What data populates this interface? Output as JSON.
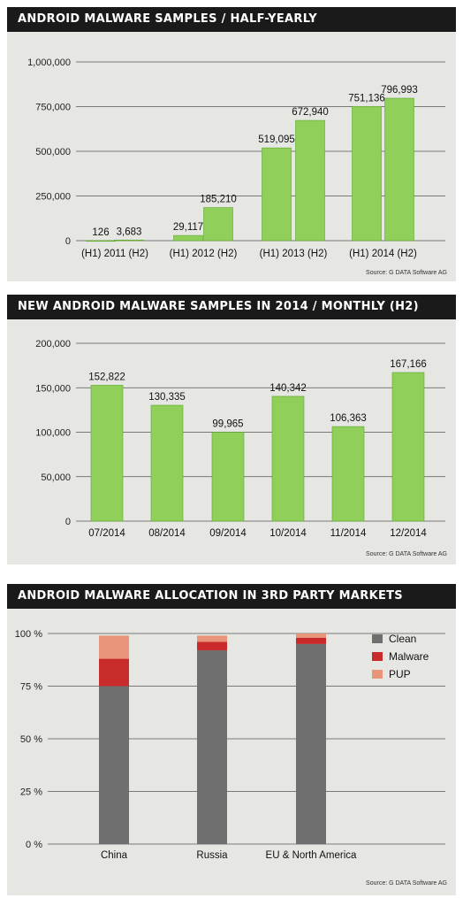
{
  "colors": {
    "bar_green": "#8fcf5a",
    "bar_green_edge": "#5fa82e",
    "clean": "#6f6f6f",
    "malware": "#c92a2a",
    "pup": "#e8957a",
    "header_bg": "#1a1a1a",
    "panel_bg": "#e6e6e3"
  },
  "chart_data": [
    {
      "type": "bar",
      "title": "ANDROID MALWARE SAMPLES / HALF-YEARLY",
      "source": "Source: G DATA Software AG",
      "ylim": [
        0,
        1000000
      ],
      "yticks": [
        0,
        250000,
        500000,
        750000,
        1000000
      ],
      "ytick_labels": [
        "0",
        "250,000",
        "500,000",
        "750,000",
        "1,000,000"
      ],
      "values": [
        126,
        3683,
        29117,
        185210,
        519095,
        672940,
        751136,
        796993
      ],
      "value_labels": [
        "126",
        "3,683",
        "29,117",
        "185,210",
        "519,095",
        "672,940",
        "751,136",
        "796,993"
      ],
      "category_labels": [
        "(H1) 2011 (H2)",
        "(H1) 2012 (H2)",
        "(H1) 2013 (H2)",
        "(H1) 2014 (H2)"
      ],
      "grid": true
    },
    {
      "type": "bar",
      "title": "NEW ANDROID MALWARE SAMPLES IN 2014 / MONTHLY (H2)",
      "source": "Source: G DATA Software AG",
      "ylim": [
        0,
        200000
      ],
      "yticks": [
        0,
        50000,
        100000,
        150000,
        200000
      ],
      "ytick_labels": [
        "0",
        "50,000",
        "100,000",
        "150,000",
        "200,000"
      ],
      "categories": [
        "07/2014",
        "08/2014",
        "09/2014",
        "10/2014",
        "11/2014",
        "12/2014"
      ],
      "values": [
        152822,
        130335,
        99965,
        140342,
        106363,
        167166
      ],
      "value_labels": [
        "152,822",
        "130,335",
        "99,965",
        "140,342",
        "106,363",
        "167,166"
      ],
      "grid": true
    },
    {
      "type": "bar",
      "stacked": true,
      "title": "ANDROID MALWARE ALLOCATION IN 3RD PARTY MARKETS",
      "source": "Source: G DATA Software AG",
      "ylim": [
        0,
        100
      ],
      "yticks": [
        0,
        25,
        50,
        75,
        100
      ],
      "ytick_labels": [
        "0 %",
        "25 %",
        "50 %",
        "75 %",
        "100 %"
      ],
      "categories": [
        "China",
        "Russia",
        "EU & North America"
      ],
      "series": [
        {
          "name": "Clean",
          "values": [
            75,
            92,
            95
          ]
        },
        {
          "name": "Malware",
          "values": [
            13,
            4,
            3
          ]
        },
        {
          "name": "PUP",
          "values": [
            11,
            3,
            2
          ]
        }
      ],
      "legend": "top-right",
      "grid": true
    }
  ]
}
